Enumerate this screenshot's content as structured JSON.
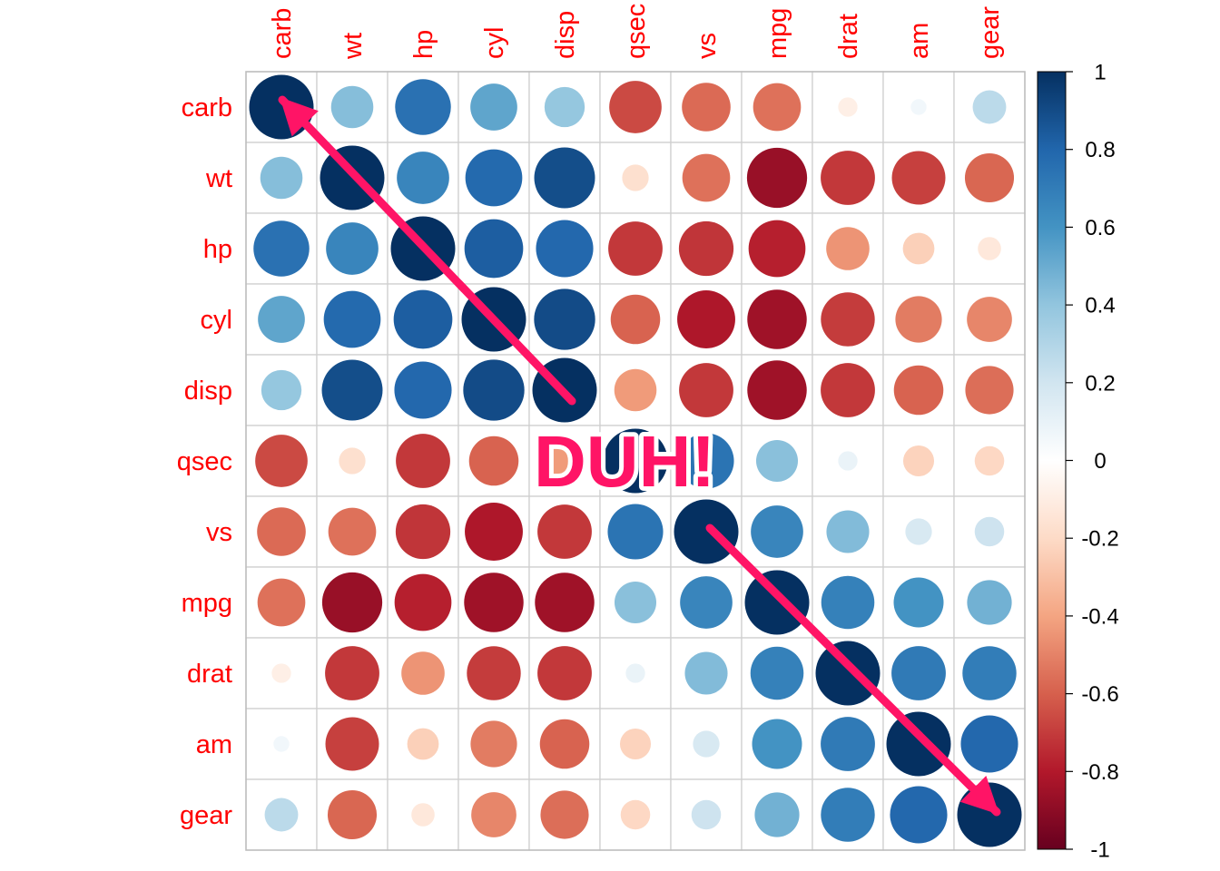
{
  "chart_data": {
    "type": "heatmap",
    "subtype": "correlation-circle-matrix",
    "variables": [
      "carb",
      "wt",
      "hp",
      "cyl",
      "disp",
      "qsec",
      "vs",
      "mpg",
      "drat",
      "am",
      "gear"
    ],
    "values": [
      [
        1.0,
        0.43,
        0.75,
        0.53,
        0.39,
        -0.66,
        -0.57,
        -0.55,
        -0.09,
        0.06,
        0.27
      ],
      [
        0.43,
        1.0,
        0.66,
        0.78,
        0.89,
        -0.17,
        -0.55,
        -0.87,
        -0.71,
        -0.69,
        -0.58
      ],
      [
        0.75,
        0.66,
        1.0,
        0.83,
        0.79,
        -0.71,
        -0.72,
        -0.78,
        -0.45,
        -0.24,
        -0.13
      ],
      [
        0.53,
        0.78,
        0.83,
        1.0,
        0.9,
        -0.59,
        -0.81,
        -0.85,
        -0.7,
        -0.52,
        -0.49
      ],
      [
        0.39,
        0.89,
        0.79,
        0.9,
        1.0,
        -0.43,
        -0.71,
        -0.85,
        -0.71,
        -0.59,
        -0.56
      ],
      [
        -0.66,
        -0.17,
        -0.71,
        -0.59,
        -0.43,
        1.0,
        0.74,
        0.42,
        0.09,
        -0.23,
        -0.21
      ],
      [
        -0.57,
        -0.55,
        -0.72,
        -0.81,
        -0.71,
        0.74,
        1.0,
        0.66,
        0.44,
        0.17,
        0.21
      ],
      [
        -0.55,
        -0.87,
        -0.78,
        -0.85,
        -0.85,
        0.42,
        0.66,
        1.0,
        0.68,
        0.6,
        0.48
      ],
      [
        -0.09,
        -0.71,
        -0.45,
        -0.7,
        -0.71,
        0.09,
        0.44,
        0.68,
        1.0,
        0.71,
        0.7
      ],
      [
        0.06,
        -0.69,
        -0.24,
        -0.52,
        -0.59,
        -0.23,
        0.17,
        0.6,
        0.71,
        1.0,
        0.79
      ],
      [
        0.27,
        -0.58,
        -0.13,
        -0.49,
        -0.56,
        -0.21,
        0.21,
        0.48,
        0.7,
        0.79,
        1.0
      ]
    ],
    "colorbar": {
      "range": [
        -1,
        1
      ],
      "tick_labels": [
        "1",
        "0.8",
        "0.6",
        "0.4",
        "0.2",
        "0",
        "-0.2",
        "-0.4",
        "-0.6",
        "-0.8",
        "-1"
      ],
      "tick_values": [
        1,
        0.8,
        0.6,
        0.4,
        0.2,
        0,
        -0.2,
        -0.4,
        -0.6,
        -0.8,
        -1
      ],
      "placement": "right"
    },
    "palette": [
      "#67001f",
      "#b2182b",
      "#d6604d",
      "#f4a582",
      "#fddbc7",
      "#ffffff",
      "#d1e5f0",
      "#92c5de",
      "#4393c3",
      "#2166ac",
      "#053061"
    ],
    "label_color": "#ff0000",
    "grid": true,
    "annotations": {
      "text": "DUH!",
      "text_color": "#ff1466",
      "arrow_color": "#ff1466"
    }
  }
}
